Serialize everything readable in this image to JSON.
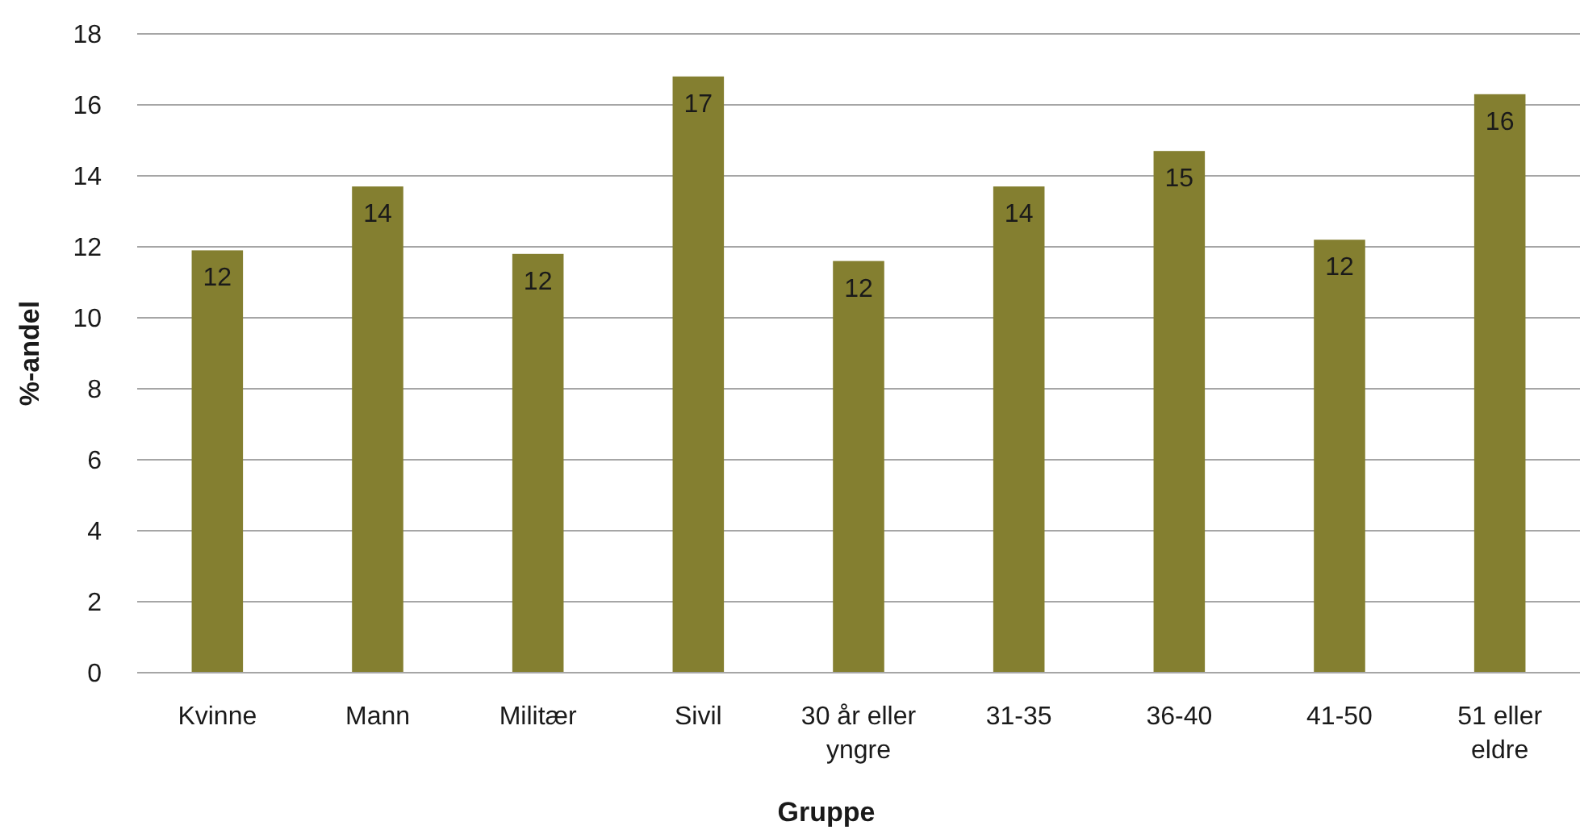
{
  "chart_data": {
    "type": "bar",
    "xlabel": "Gruppe",
    "ylabel": "%-andel",
    "categories": [
      "Kvinne",
      "Mann",
      "Militær",
      "Sivil",
      "30 år eller yngre",
      "31-35",
      "36-40",
      "41-50",
      "51 eller eldre"
    ],
    "values": [
      11.9,
      13.7,
      11.8,
      16.8,
      11.6,
      13.7,
      14.7,
      12.2,
      16.3
    ],
    "value_labels": [
      "12",
      "14",
      "12",
      "17",
      "12",
      "14",
      "15",
      "12",
      "16"
    ],
    "color": "#847f30",
    "ylim": [
      0,
      18
    ],
    "yticks": [
      0,
      2,
      4,
      6,
      8,
      10,
      12,
      14,
      16,
      18
    ],
    "grid": "y"
  }
}
